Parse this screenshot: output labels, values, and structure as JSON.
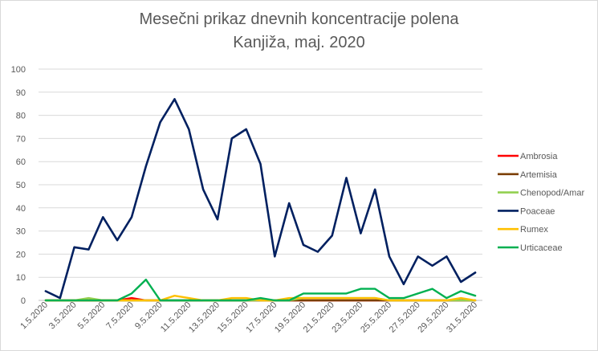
{
  "chart_data": {
    "type": "line",
    "title": [
      "Mesečni prikaz dnevnih koncentracije polena",
      "Kanjiža, maj. 2020"
    ],
    "xlabel": "",
    "ylabel": "",
    "ylim": [
      0,
      100
    ],
    "yticks": [
      "0",
      "10",
      "20",
      "30",
      "40",
      "50",
      "60",
      "70",
      "80",
      "90",
      "100"
    ],
    "x": [
      "1.5.2020",
      "2.5.2020",
      "3.5.2020",
      "4.5.2020",
      "5.5.2020",
      "6.5.2020",
      "7.5.2020",
      "8.5.2020",
      "9.5.2020",
      "10.5.2020",
      "11.5.2020",
      "12.5.2020",
      "13.5.2020",
      "14.5.2020",
      "15.5.2020",
      "16.5.2020",
      "17.5.2020",
      "18.5.2020",
      "19.5.2020",
      "20.5.2020",
      "21.5.2020",
      "22.5.2020",
      "23.5.2020",
      "24.5.2020",
      "25.5.2020",
      "26.5.2020",
      "27.5.2020",
      "28.5.2020",
      "29.5.2020",
      "30.5.2020",
      "31.5.2020"
    ],
    "xtick_labels": [
      "1.5.2020",
      "3.5.2020",
      "5.5.2020",
      "7.5.2020",
      "9.5.2020",
      "11.5.2020",
      "13.5.2020",
      "15.5.2020",
      "17.5.2020",
      "19.5.2020",
      "21.5.2020",
      "23.5.2020",
      "25.5.2020",
      "27.5.2020",
      "29.5.2020",
      "31.5.2020"
    ],
    "grid": true,
    "legend_position": "right",
    "series": [
      {
        "name": "Ambrosia",
        "color": "#ff0000",
        "values": [
          0,
          0,
          0,
          0,
          0,
          0,
          1,
          0,
          0,
          0,
          0,
          0,
          0,
          0,
          0,
          0,
          0,
          0,
          0,
          0,
          0,
          0,
          0,
          0,
          0,
          0,
          0,
          0,
          0,
          0,
          0
        ]
      },
      {
        "name": "Artemisia",
        "color": "#7b3f00",
        "values": [
          0,
          0,
          0,
          0,
          0,
          0,
          0,
          0,
          0,
          0,
          0,
          0,
          0,
          0,
          0,
          0,
          0,
          0,
          0,
          0,
          0,
          0,
          0,
          0,
          0,
          0,
          0,
          0,
          0,
          0,
          0
        ]
      },
      {
        "name": "Chenopod/Amar",
        "color": "#92d050",
        "values": [
          0,
          0,
          0,
          1,
          0,
          0,
          0,
          0,
          0,
          0,
          0,
          0,
          0,
          0,
          0,
          0,
          0,
          0,
          1,
          1,
          1,
          1,
          1,
          1,
          0,
          0,
          0,
          0,
          0,
          0,
          0
        ]
      },
      {
        "name": "Poaceae",
        "color": "#002060",
        "values": [
          4,
          1,
          23,
          22,
          36,
          26,
          36,
          58,
          77,
          87,
          74,
          48,
          35,
          70,
          74,
          59,
          19,
          42,
          24,
          21,
          28,
          53,
          29,
          48,
          19,
          7,
          19,
          15,
          19,
          8,
          12
        ]
      },
      {
        "name": "Rumex",
        "color": "#ffc000",
        "values": [
          0,
          0,
          0,
          0,
          0,
          0,
          0,
          0,
          0,
          2,
          1,
          0,
          0,
          1,
          1,
          0,
          0,
          1,
          1,
          1,
          1,
          1,
          1,
          1,
          0,
          0,
          0,
          0,
          0,
          1,
          0
        ]
      },
      {
        "name": "Urticaceae",
        "color": "#00b050",
        "values": [
          0,
          0,
          0,
          0,
          0,
          0,
          3,
          9,
          0,
          0,
          0,
          0,
          0,
          0,
          0,
          1,
          0,
          0,
          3,
          3,
          3,
          3,
          5,
          5,
          1,
          1,
          3,
          5,
          1,
          4,
          2
        ]
      }
    ]
  }
}
